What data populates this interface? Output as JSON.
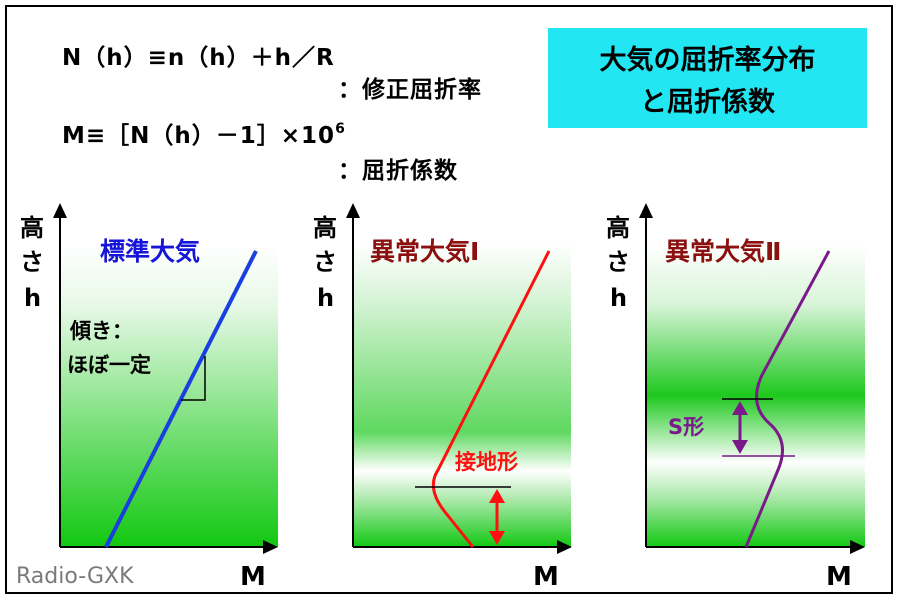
{
  "formulas": {
    "n_def": "N（h）≡n（h）＋h／R",
    "n_desc": "：修正屈折率",
    "m_def_prefix": "M≡［N（h）－1］×10",
    "m_def_exp": "6",
    "m_desc": "：屈折係数"
  },
  "title": {
    "line1": "大気の屈折率分布",
    "line2": "と屈折係数"
  },
  "axes": {
    "y_label_1": "高",
    "y_label_2": "さ",
    "y_label_3": "h",
    "x_label": "M"
  },
  "panels": [
    {
      "title": "標準大気",
      "title_color": "#1515d8",
      "line_color": "#1a3fe0",
      "annotation_1": "傾き：",
      "annotation_2": "ほぼ一定"
    },
    {
      "title": "異常大気Ⅰ",
      "title_color": "#8b1010",
      "line_color": "#ff1010",
      "annotation": "接地形",
      "annotation_color": "#ff1010"
    },
    {
      "title": "異常大気Ⅱ",
      "title_color": "#8b1010",
      "line_color": "#7a1a8a",
      "annotation": "S形",
      "annotation_color": "#7a1a8a"
    }
  ],
  "watermark": "Radio-GXK",
  "colors": {
    "accent_title_bg": "#22e6f2",
    "green": "#11cc11"
  }
}
